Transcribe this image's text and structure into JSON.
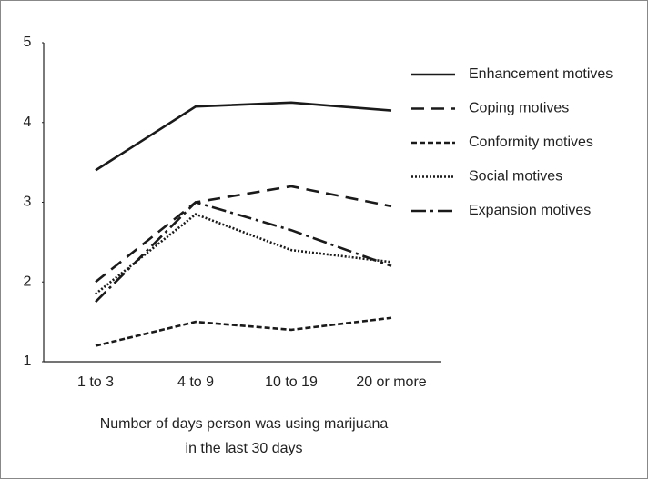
{
  "chart_data": {
    "type": "line",
    "x_label": [
      "Number of days person was using marijuana",
      "in the last 30 days"
    ],
    "categories": [
      "1 to 3",
      "4 to 9",
      "10 to 19",
      "20 or more"
    ],
    "ylim": [
      1,
      5
    ],
    "yticks": [
      1,
      2,
      3,
      4,
      5
    ],
    "series": [
      {
        "name": "Enhancement motives",
        "color": "#1a1a1a",
        "dash": "none",
        "values": [
          3.4,
          4.2,
          4.25,
          4.15
        ]
      },
      {
        "name": "Coping motives",
        "color": "#1a1a1a",
        "dash": "14 8",
        "values": [
          2.0,
          3.0,
          3.2,
          2.95
        ]
      },
      {
        "name": "Conformity motives",
        "color": "#1a1a1a",
        "dash": "6 3",
        "values": [
          1.2,
          1.5,
          1.4,
          1.55
        ]
      },
      {
        "name": "Social motives",
        "color": "#1a1a1a",
        "dash": "2 2",
        "values": [
          1.85,
          2.85,
          2.4,
          2.25
        ]
      },
      {
        "name": "Expansion motives",
        "color": "#1a1a1a",
        "dash": "16 5 3 5",
        "values": [
          1.75,
          3.0,
          2.65,
          2.2
        ]
      }
    ]
  }
}
